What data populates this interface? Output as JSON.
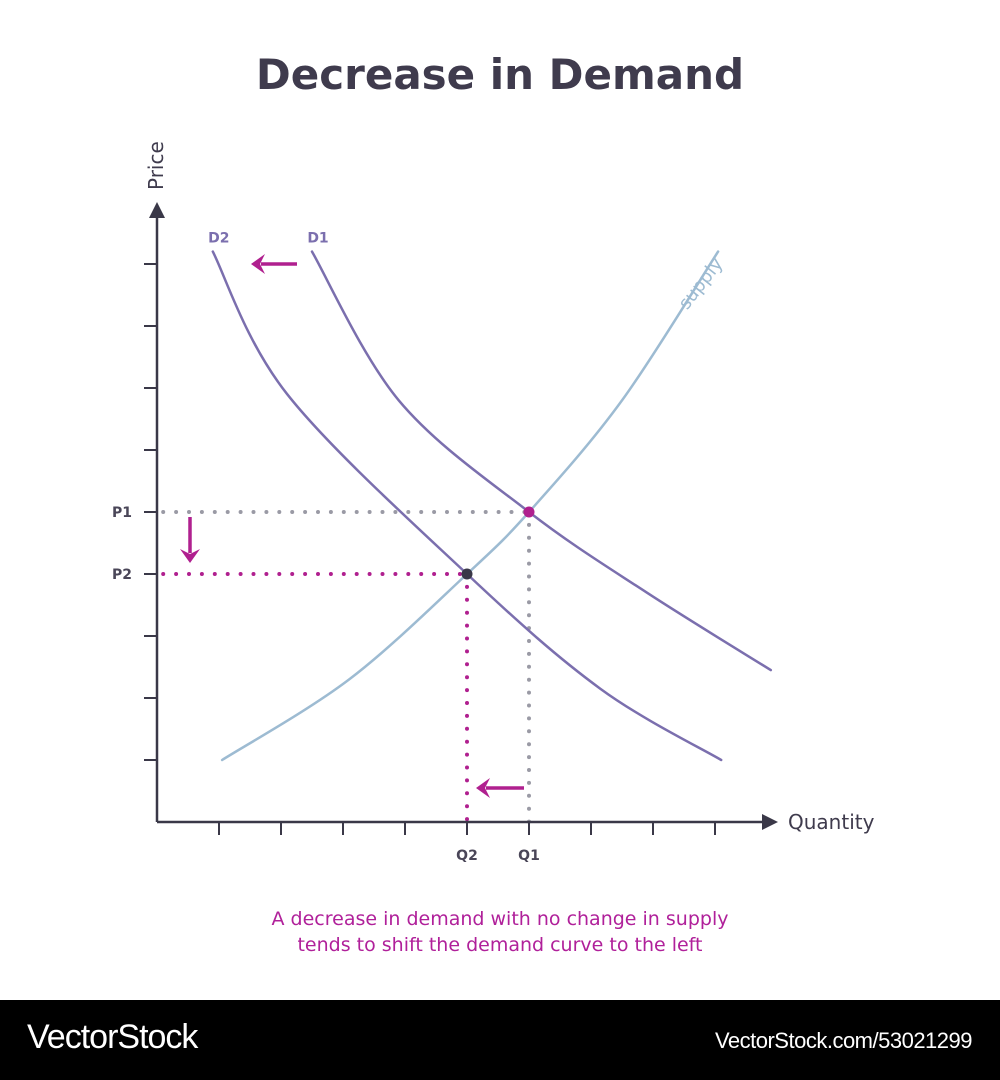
{
  "title": "Decrease in Demand",
  "caption_lines": [
    "A decrease in demand with no change in supply",
    "tends to shift the demand curve to the left"
  ],
  "footer": {
    "brand": "VectorStock",
    "reference": "VectorStock.com/53021299"
  },
  "colors": {
    "demand": "#7b6fae",
    "supply": "#9dbbd2",
    "accent": "#b0208f",
    "axis": "#3a3848",
    "guide": "#9a9aa5",
    "equilibrium_new": "#3a3848"
  },
  "chart_data": {
    "type": "line",
    "xlabel": "Quantity",
    "ylabel": "Price",
    "xlim": [
      0,
      10
    ],
    "ylim": [
      0,
      10
    ],
    "grid": false,
    "x_ticks": [
      1,
      2,
      3,
      4,
      5,
      6,
      7,
      8,
      9
    ],
    "y_ticks": [
      1,
      2,
      3,
      4,
      5,
      6,
      7,
      8,
      9
    ],
    "x_tick_labels": [
      {
        "value": 5,
        "label": "Q2"
      },
      {
        "value": 6,
        "label": "Q1"
      }
    ],
    "y_tick_labels": [
      {
        "value": 5,
        "label": "P1"
      },
      {
        "value": 4,
        "label": "P2"
      }
    ],
    "series": [
      {
        "name": "D1",
        "color": "#7b6fae",
        "points": [
          [
            2.5,
            9.2
          ],
          [
            3.9,
            6.8
          ],
          [
            6,
            5
          ],
          [
            7.9,
            3.7
          ],
          [
            9.9,
            2.45
          ]
        ]
      },
      {
        "name": "D2",
        "color": "#7b6fae",
        "points": [
          [
            0.9,
            9.2
          ],
          [
            2.1,
            6.9
          ],
          [
            5,
            4
          ],
          [
            7.15,
            2.15
          ],
          [
            9.1,
            1.0
          ]
        ]
      },
      {
        "name": "supply",
        "color": "#9dbbd2",
        "points": [
          [
            1.05,
            1.0
          ],
          [
            3.1,
            2.3
          ],
          [
            5,
            4
          ],
          [
            6,
            5
          ],
          [
            7.5,
            6.8
          ],
          [
            9.05,
            9.2
          ]
        ]
      }
    ],
    "equilibria": [
      {
        "x": 6,
        "y": 5,
        "color": "#b0208f"
      },
      {
        "x": 5,
        "y": 4,
        "color": "#3a3848"
      }
    ],
    "annotations": [
      "demand shift left",
      "price falls P1 to P2",
      "quantity falls Q1 to Q2"
    ]
  }
}
